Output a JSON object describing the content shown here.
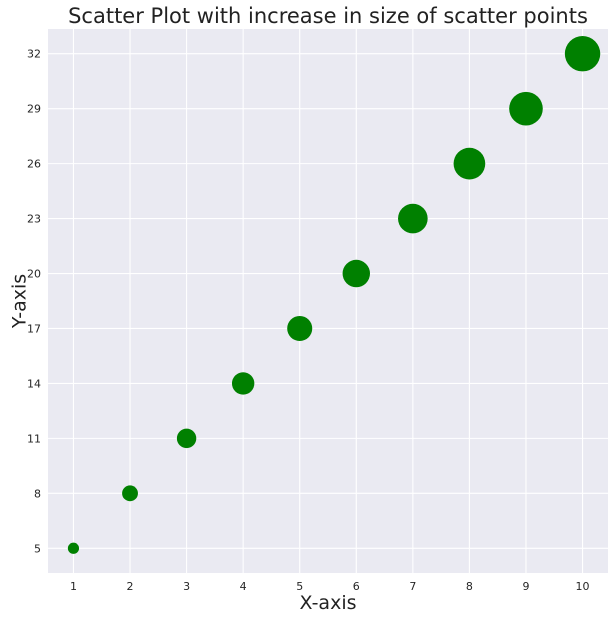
{
  "chart_data": {
    "type": "scatter",
    "title": "Scatter Plot with increase in size of scatter points",
    "xlabel": "X-axis",
    "ylabel": "Y-axis",
    "x": [
      1,
      2,
      3,
      4,
      5,
      6,
      7,
      8,
      9,
      10
    ],
    "y": [
      5,
      8,
      11,
      14,
      17,
      20,
      23,
      26,
      29,
      32
    ],
    "sizes": [
      100,
      200,
      300,
      400,
      500,
      600,
      700,
      800,
      900,
      1000
    ],
    "xticks": [
      1,
      2,
      3,
      4,
      5,
      6,
      7,
      8,
      9,
      10
    ],
    "yticks": [
      5,
      8,
      11,
      14,
      17,
      20,
      23,
      26,
      29,
      32
    ],
    "xlim": [
      0.55,
      10.45
    ],
    "ylim": [
      3.65,
      33.35
    ],
    "grid": true,
    "point_color": "#008000",
    "plot_background": "#EAEAF2",
    "grid_color": "#FFFFFF"
  }
}
